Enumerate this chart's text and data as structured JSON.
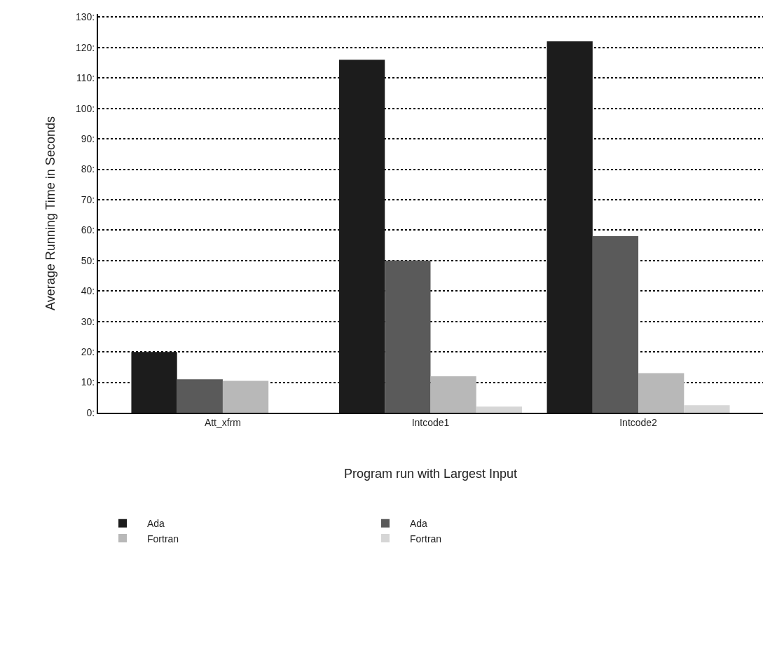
{
  "chart_data": {
    "type": "bar",
    "xlabel": "Program run with Largest Input",
    "ylabel": "Average Running Time in Seconds",
    "categories": [
      "Att_xfrm",
      "Intcode1",
      "Intcode2"
    ],
    "series": [
      {
        "name": "Ada",
        "color": "#1c1c1c",
        "values": [
          20,
          116,
          122
        ]
      },
      {
        "name": "Ada",
        "color": "#5a5a5a",
        "values": [
          11,
          50,
          58
        ]
      },
      {
        "name": "Fortran",
        "color": "#b8b8b8",
        "values": [
          10.5,
          12,
          13
        ]
      },
      {
        "name": "Fortran",
        "color": "#d6d6d6",
        "values": [
          null,
          2,
          2.5
        ]
      }
    ],
    "ylim": [
      0,
      131
    ],
    "yticks": [
      {
        "value": 0,
        "label": "0:"
      },
      {
        "value": 10,
        "label": "10:"
      },
      {
        "value": 20,
        "label": "20:"
      },
      {
        "value": 30,
        "label": "30:"
      },
      {
        "value": 40,
        "label": "40:"
      },
      {
        "value": 50,
        "label": "50:"
      },
      {
        "value": 60,
        "label": "60:"
      },
      {
        "value": 70,
        "label": "70:"
      },
      {
        "value": 80,
        "label": "80:"
      },
      {
        "value": 90,
        "label": "90:"
      },
      {
        "value": 100,
        "label": "100:"
      },
      {
        "value": 110,
        "label": "110:"
      },
      {
        "value": 120,
        "label": "120:"
      },
      {
        "value": 130,
        "label": "130:"
      }
    ],
    "grid": "y",
    "legend": "bottom"
  }
}
